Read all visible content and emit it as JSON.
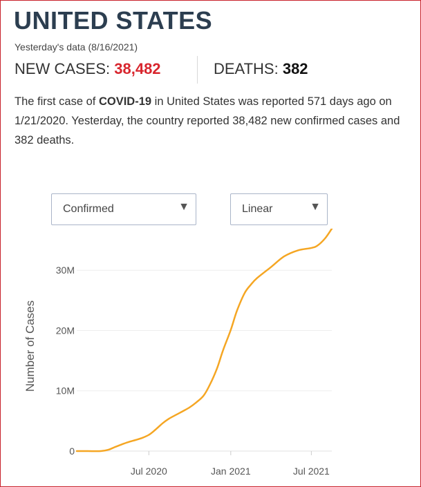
{
  "header": {
    "title": "UNITED STATES",
    "subtitle": "Yesterday's data (8/16/2021)"
  },
  "stats": {
    "new_cases_label": "NEW CASES: ",
    "new_cases_value": "38,482",
    "deaths_label": "DEATHS: ",
    "deaths_value": "382"
  },
  "summary": {
    "part1": "The first case of ",
    "bold": "COVID-19",
    "part2": " in United States was reported 571 days ago on 1/21/2020. Yesterday, the country reported 38,482 new confirmed cases and 382 deaths."
  },
  "controls": {
    "metric_selected": "Confirmed",
    "scale_selected": "Linear"
  },
  "colors": {
    "accent": "#c8202a",
    "cases_red": "#d8262e",
    "line": "#f5a623",
    "title": "#2c3e50"
  },
  "chart_data": {
    "type": "line",
    "ylabel": "Number of Cases",
    "xlabel": "",
    "x_ticks": [
      {
        "x": "2020-07-01",
        "label": "Jul 2020"
      },
      {
        "x": "2021-01-01",
        "label": "Jan 2021"
      },
      {
        "x": "2021-07-01",
        "label": "Jul 2021"
      }
    ],
    "y_ticks": [
      {
        "y": 0,
        "label": "0"
      },
      {
        "y": 10000000,
        "label": "10M"
      },
      {
        "y": 20000000,
        "label": "20M"
      },
      {
        "y": 30000000,
        "label": "30M"
      }
    ],
    "xlim": [
      "2020-01-21",
      "2021-08-16"
    ],
    "ylim": [
      0,
      36900000
    ],
    "grid": true,
    "series": [
      {
        "name": "",
        "color": "#f5a623",
        "points": [
          [
            "2020-01-21",
            0
          ],
          [
            "2020-02-15",
            20
          ],
          [
            "2020-03-15",
            3000
          ],
          [
            "2020-04-01",
            215000
          ],
          [
            "2020-04-15",
            640000
          ],
          [
            "2020-05-01",
            1100000
          ],
          [
            "2020-05-15",
            1470000
          ],
          [
            "2020-06-01",
            1830000
          ],
          [
            "2020-06-15",
            2160000
          ],
          [
            "2020-07-01",
            2690000
          ],
          [
            "2020-07-15",
            3500000
          ],
          [
            "2020-08-01",
            4620000
          ],
          [
            "2020-08-15",
            5360000
          ],
          [
            "2020-09-01",
            6050000
          ],
          [
            "2020-09-15",
            6600000
          ],
          [
            "2020-10-01",
            7280000
          ],
          [
            "2020-10-15",
            8050000
          ],
          [
            "2020-11-01",
            9200000
          ],
          [
            "2020-11-15",
            11000000
          ],
          [
            "2020-12-01",
            13700000
          ],
          [
            "2020-12-15",
            16800000
          ],
          [
            "2021-01-01",
            20100000
          ],
          [
            "2021-01-15",
            23300000
          ],
          [
            "2021-02-01",
            26200000
          ],
          [
            "2021-02-15",
            27600000
          ],
          [
            "2021-03-01",
            28700000
          ],
          [
            "2021-04-01",
            30500000
          ],
          [
            "2021-05-01",
            32300000
          ],
          [
            "2021-06-01",
            33300000
          ],
          [
            "2021-07-01",
            33700000
          ],
          [
            "2021-07-15",
            34100000
          ],
          [
            "2021-08-01",
            35300000
          ],
          [
            "2021-08-16",
            36900000
          ]
        ]
      }
    ]
  }
}
